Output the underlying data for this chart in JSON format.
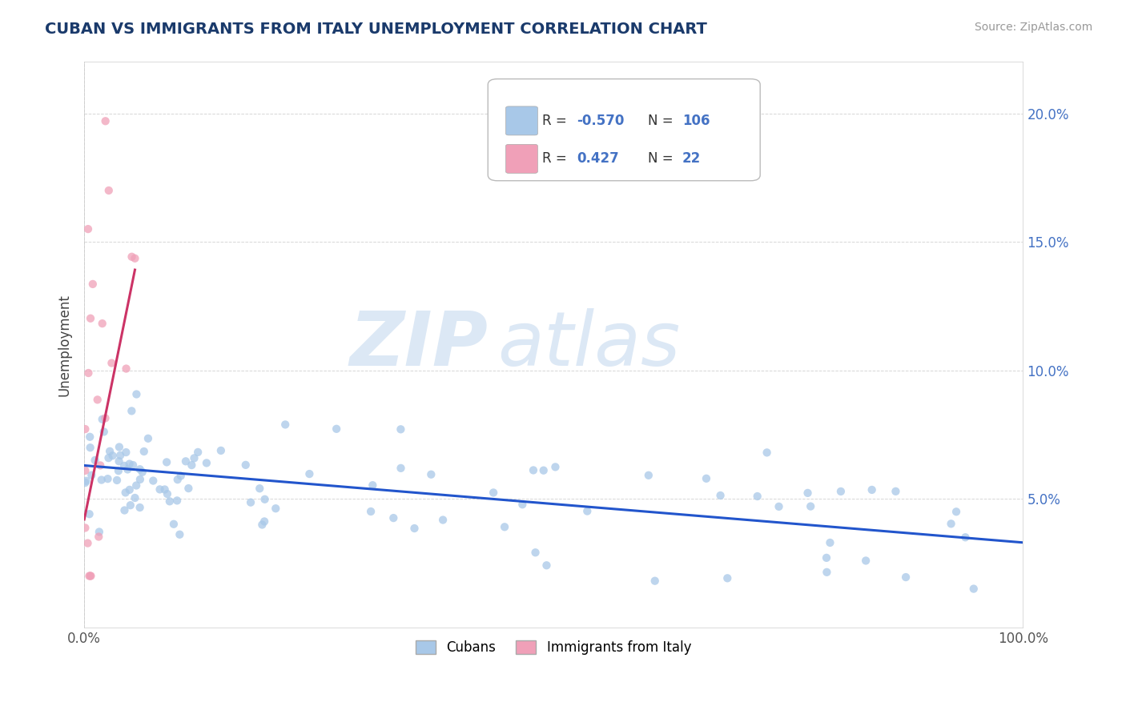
{
  "title": "CUBAN VS IMMIGRANTS FROM ITALY UNEMPLOYMENT CORRELATION CHART",
  "source_text": "Source: ZipAtlas.com",
  "ylabel": "Unemployment",
  "watermark_zip": "ZIP",
  "watermark_atlas": "atlas",
  "xlim": [
    0.0,
    1.0
  ],
  "ylim": [
    0.0,
    0.22
  ],
  "xtick_labels": [
    "0.0%",
    "100.0%"
  ],
  "ytick_positions": [
    0.05,
    0.1,
    0.15,
    0.2
  ],
  "ytick_labels": [
    "5.0%",
    "10.0%",
    "15.0%",
    "20.0%"
  ],
  "cubans_color": "#a8c8e8",
  "italy_color": "#f0a0b8",
  "cubans_line_color": "#2255cc",
  "italy_line_color": "#cc3366",
  "title_color": "#1a3a6b",
  "legend_r_cubans": "-0.570",
  "legend_n_cubans": "106",
  "legend_r_italy": "0.427",
  "legend_n_italy": "22",
  "background_color": "#ffffff",
  "grid_color": "#cccccc",
  "watermark_color": "#dce8f5"
}
